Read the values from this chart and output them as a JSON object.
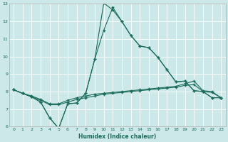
{
  "xlabel": "Humidex (Indice chaleur)",
  "xlim": [
    -0.5,
    23.5
  ],
  "ylim": [
    6,
    13
  ],
  "yticks": [
    6,
    7,
    8,
    9,
    10,
    11,
    12,
    13
  ],
  "xticks": [
    0,
    1,
    2,
    3,
    4,
    5,
    6,
    7,
    8,
    9,
    10,
    11,
    12,
    13,
    14,
    15,
    16,
    17,
    18,
    19,
    20,
    21,
    22,
    23
  ],
  "bg_color": "#cce8e8",
  "grid_color": "#ffffff",
  "line_color": "#1a6b5a",
  "line1_x": [
    0,
    1,
    2,
    3,
    4,
    5,
    6,
    7,
    8,
    9,
    10,
    11,
    12,
    13,
    14,
    15,
    16,
    17,
    18,
    19,
    20,
    21,
    22,
    23
  ],
  "line1_y": [
    8.1,
    7.9,
    7.7,
    7.4,
    6.5,
    5.9,
    7.3,
    7.35,
    7.9,
    9.85,
    13.05,
    12.65,
    12.0,
    11.2,
    10.6,
    10.5,
    9.95,
    9.25,
    8.55,
    8.6,
    8.05,
    8.0,
    7.65,
    7.65
  ],
  "line2_x": [
    0,
    1,
    2,
    3,
    4,
    5,
    6,
    7,
    8,
    9,
    10,
    11,
    12,
    13,
    14,
    15,
    16,
    17,
    18,
    19,
    20,
    21,
    22,
    23
  ],
  "line2_y": [
    8.1,
    7.9,
    7.7,
    7.4,
    6.5,
    5.9,
    7.3,
    7.35,
    7.9,
    9.85,
    11.5,
    12.8,
    12.0,
    11.2,
    10.6,
    10.5,
    9.95,
    9.25,
    8.55,
    8.6,
    8.05,
    8.0,
    7.65,
    7.65
  ],
  "line3_x": [
    0,
    1,
    2,
    3,
    4,
    5,
    6,
    7,
    8,
    9,
    10,
    11,
    12,
    13,
    14,
    15,
    16,
    17,
    18,
    19,
    20,
    21,
    22,
    23
  ],
  "line3_y": [
    8.1,
    7.9,
    7.75,
    7.55,
    7.3,
    7.3,
    7.5,
    7.65,
    7.75,
    7.85,
    7.9,
    7.95,
    8.0,
    8.05,
    8.1,
    8.15,
    8.2,
    8.25,
    8.3,
    8.45,
    8.6,
    8.05,
    8.0,
    7.65
  ],
  "line4_x": [
    0,
    1,
    2,
    3,
    4,
    5,
    6,
    7,
    8,
    9,
    10,
    11,
    12,
    13,
    14,
    15,
    16,
    17,
    18,
    19,
    20,
    21,
    22,
    23
  ],
  "line4_y": [
    8.1,
    7.9,
    7.7,
    7.5,
    7.25,
    7.25,
    7.4,
    7.55,
    7.65,
    7.75,
    7.85,
    7.9,
    7.95,
    8.0,
    8.05,
    8.1,
    8.15,
    8.2,
    8.25,
    8.35,
    8.4,
    8.0,
    7.95,
    7.65
  ]
}
